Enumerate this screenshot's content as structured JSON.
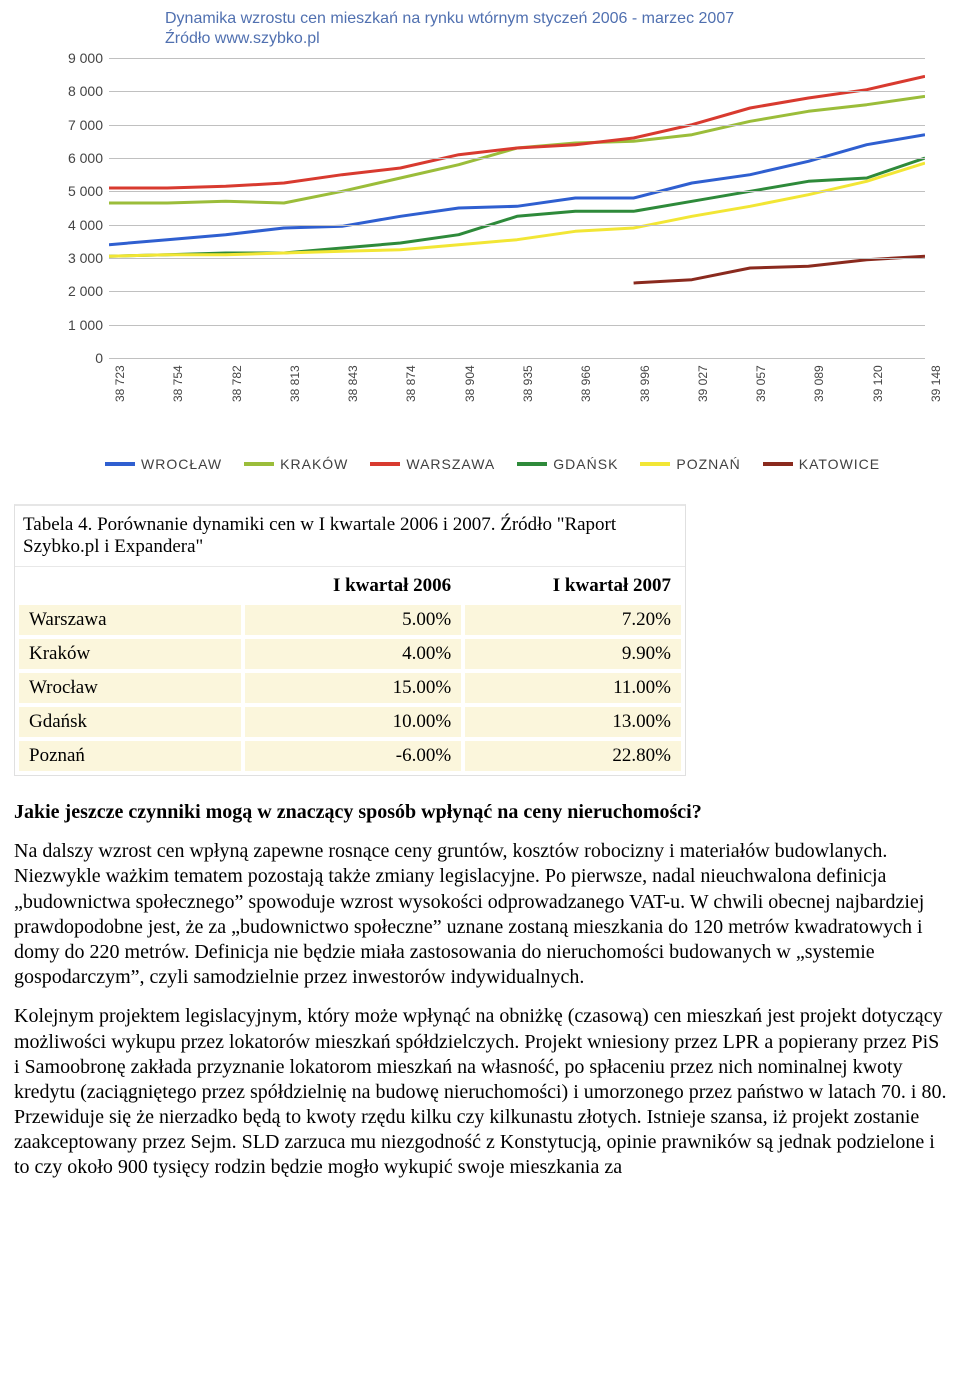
{
  "chart": {
    "type": "line",
    "title": "Dynamika wzrostu cen mieszkań na rynku wtórnym styczeń 2006 - marzec 2007",
    "source": "Źródło www.szybko.pl",
    "title_color": "#5070b0",
    "background_color": "#ffffff",
    "grid_color": "#c0c0c0",
    "ylim": [
      0,
      9000
    ],
    "ytick_step": 1000,
    "yticks": [
      "0",
      "1 000",
      "2 000",
      "3 000",
      "4 000",
      "5 000",
      "6 000",
      "7 000",
      "8 000",
      "9 000"
    ],
    "xticks": [
      "38 723",
      "38 754",
      "38 782",
      "38 813",
      "38 843",
      "38 874",
      "38 904",
      "38 935",
      "38 966",
      "38 996",
      "39 027",
      "39 057",
      "39 089",
      "39 120",
      "39 148"
    ],
    "line_width": 3,
    "series": [
      {
        "name": "WROCŁAW",
        "color": "#2f5fd0",
        "values": [
          3400,
          3550,
          3700,
          3900,
          3950,
          4250,
          4500,
          4550,
          4800,
          4800,
          5250,
          5500,
          5900,
          6400,
          6700
        ]
      },
      {
        "name": "KRAKÓW",
        "color": "#9bbd3a",
        "values": [
          4650,
          4650,
          4700,
          4650,
          5000,
          5400,
          5800,
          6300,
          6450,
          6500,
          6700,
          7100,
          7400,
          7600,
          7850
        ]
      },
      {
        "name": "WARSZAWA",
        "color": "#d83a2f",
        "values": [
          5100,
          5100,
          5150,
          5250,
          5500,
          5700,
          6100,
          6300,
          6400,
          6600,
          7000,
          7500,
          7800,
          8050,
          8450
        ]
      },
      {
        "name": "GDAŃSK",
        "color": "#2e8a3a",
        "values": [
          3050,
          3100,
          3150,
          3150,
          3300,
          3450,
          3700,
          4250,
          4400,
          4400,
          4700,
          5000,
          5300,
          5400,
          6000
        ]
      },
      {
        "name": "POZNAŃ",
        "color": "#f2e635",
        "values": [
          3050,
          3100,
          3100,
          3150,
          3200,
          3250,
          3400,
          3550,
          3800,
          3900,
          4250,
          4550,
          4900,
          5300,
          5850
        ]
      },
      {
        "name": "KATOWICE",
        "color": "#8a2a1e",
        "values": [
          null,
          null,
          null,
          null,
          null,
          null,
          null,
          null,
          null,
          2250,
          2350,
          2700,
          2750,
          2950,
          3050
        ]
      }
    ]
  },
  "table": {
    "caption": "Tabela 4. Porównanie dynamiki cen w I kwartale 2006 i 2007. Źródło \"Raport Szybko.pl i Expandera\"",
    "columns": [
      "",
      "I kwartał 2006",
      "I kwartał 2007"
    ],
    "rows": [
      [
        "Warszawa",
        "5.00%",
        "7.20%"
      ],
      [
        "Kraków",
        "4.00%",
        "9.90%"
      ],
      [
        "Wrocław",
        "15.00%",
        "11.00%"
      ],
      [
        "Gdańsk",
        "10.00%",
        "13.00%"
      ],
      [
        "Poznań",
        "-6.00%",
        "22.80%"
      ]
    ],
    "row_bg": "#fbf6dc"
  },
  "text": {
    "heading": "Jakie jeszcze czynniki mogą w znaczący sposób wpłynąć na ceny nieruchomości?",
    "p1": "Na dalszy wzrost cen wpłyną zapewne rosnące ceny gruntów, kosztów robocizny i materiałów budowlanych. Niezwykle ważkim tematem pozostają także zmiany legislacyjne. Po pierwsze, nadal nieuchwalona definicja „budownictwa społecznego” spowoduje wzrost wysokości odprowadzanego VAT-u. W chwili obecnej najbardziej prawdopodobne jest, że za „budownictwo społeczne” uznane zostaną mieszkania do 120 metrów kwadratowych i domy do 220 metrów. Definicja nie będzie miała zastosowania do nieruchomości budowanych w „systemie gospodarczym”, czyli samodzielnie przez inwestorów indywidualnych.",
    "p2": "Kolejnym projektem legislacyjnym, który może wpłynąć na obniżkę (czasową) cen mieszkań jest projekt dotyczący możliwości wykupu przez lokatorów mieszkań spółdzielczych. Projekt wniesiony przez LPR a popierany przez PiS i Samoobronę zakłada przyznanie lokatorom mieszkań na własność, po spłaceniu przez nich nominalnej kwoty kredytu (zaciągniętego przez spółdzielnię na budowę nieruchomości) i umorzonego przez państwo w latach 70. i 80. Przewiduje się że nierzadko będą to kwoty rzędu kilku czy kilkunastu złotych. Istnieje szansa, iż projekt zostanie zaakceptowany przez Sejm. SLD zarzuca mu niezgodność z Konstytucją, opinie prawników są jednak podzielone i to czy około 900 tysięcy rodzin będzie mogło wykupić swoje mieszkania za"
  }
}
